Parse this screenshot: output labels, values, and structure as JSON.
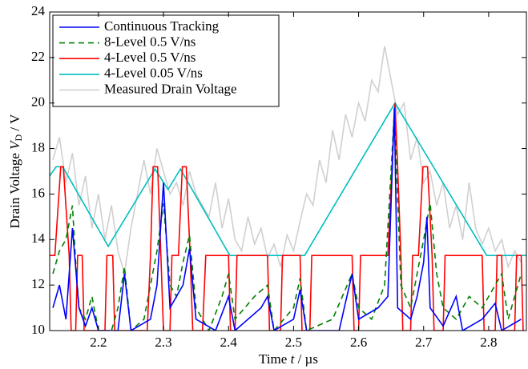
{
  "chart_data": {
    "type": "line",
    "xlabel": {
      "text": "Time",
      "var": "t",
      "unit": "/ µs"
    },
    "ylabel": {
      "text": "Drain Voltage",
      "var": "V",
      "sub": "D",
      "unit": "/ V"
    },
    "xlim": [
      2.125,
      2.858
    ],
    "ylim": [
      10,
      24
    ],
    "xticks": [
      2.2,
      2.3,
      2.4,
      2.5,
      2.6,
      2.7,
      2.8
    ],
    "yticks": [
      10,
      12,
      14,
      16,
      18,
      20,
      22,
      24
    ],
    "legend": "upper left",
    "series": [
      {
        "name": "Continuous Tracking",
        "color": "#0000ff",
        "dash": "solid",
        "x": [
          2.13,
          2.14,
          2.15,
          2.16,
          2.17,
          2.18,
          2.19,
          2.2,
          2.23,
          2.24,
          2.25,
          2.28,
          2.29,
          2.3,
          2.31,
          2.33,
          2.34,
          2.35,
          2.38,
          2.4,
          2.41,
          2.45,
          2.46,
          2.47,
          2.5,
          2.51,
          2.52,
          2.57,
          2.59,
          2.6,
          2.63,
          2.645,
          2.655,
          2.66,
          2.68,
          2.69,
          2.7,
          2.705,
          2.71,
          2.73,
          2.75,
          2.76,
          2.79,
          2.81,
          2.82,
          2.85
        ],
        "values": [
          11,
          12,
          10.5,
          14.5,
          11,
          10.2,
          11,
          10,
          10,
          12.5,
          10,
          10.5,
          12,
          16.5,
          11,
          12,
          13.6,
          10.5,
          10,
          11.5,
          10,
          11,
          11.5,
          10,
          10.5,
          11.8,
          10,
          10,
          12.5,
          10.5,
          11,
          11.5,
          19.8,
          11,
          10.5,
          11.5,
          13,
          15,
          11,
          10.2,
          11.5,
          10,
          10.5,
          11.2,
          10,
          10.5
        ]
      },
      {
        "name": "8-Level 0.5 V/ns",
        "color": "#008000",
        "dash": "dashed",
        "x": [
          2.13,
          2.14,
          2.15,
          2.16,
          2.165,
          2.17,
          2.18,
          2.19,
          2.2,
          2.22,
          2.23,
          2.24,
          2.25,
          2.27,
          2.28,
          2.29,
          2.3,
          2.31,
          2.32,
          2.33,
          2.34,
          2.35,
          2.37,
          2.39,
          2.4,
          2.41,
          2.44,
          2.46,
          2.47,
          2.5,
          2.51,
          2.52,
          2.56,
          2.59,
          2.6,
          2.62,
          2.64,
          2.655,
          2.665,
          2.68,
          2.69,
          2.7,
          2.71,
          2.72,
          2.73,
          2.75,
          2.77,
          2.79,
          2.81,
          2.82,
          2.83,
          2.84,
          2.85
        ],
        "values": [
          12.5,
          13.5,
          14,
          15.5,
          13,
          11,
          10.5,
          11.5,
          10,
          10,
          11,
          12.8,
          10,
          10.5,
          12,
          13.5,
          15.6,
          12,
          11.5,
          13,
          14.2,
          11,
          10,
          11.5,
          12.5,
          10.5,
          11.5,
          12,
          10,
          11,
          12.3,
          10,
          10.5,
          12.5,
          11,
          10.5,
          12,
          19.6,
          12,
          11,
          12.5,
          14,
          15.6,
          12.5,
          11,
          10.5,
          11.5,
          11,
          12,
          12.5,
          10.5,
          11.5,
          12.5
        ]
      },
      {
        "name": "4-Level 0.5 V/ns",
        "color": "#ff0000",
        "dash": "solid",
        "x": [
          2.125,
          2.133,
          2.142,
          2.146,
          2.155,
          2.158,
          2.165,
          2.168,
          2.175,
          2.178,
          2.21,
          2.213,
          2.222,
          2.225,
          2.275,
          2.28,
          2.284,
          2.291,
          2.296,
          2.3,
          2.31,
          2.313,
          2.323,
          2.329,
          2.335,
          2.341,
          2.345,
          2.36,
          2.365,
          2.4,
          2.403,
          2.41,
          2.413,
          2.46,
          2.463,
          2.48,
          2.483,
          2.51,
          2.513,
          2.525,
          2.528,
          2.59,
          2.593,
          2.6,
          2.603,
          2.645,
          2.656,
          2.66,
          2.665,
          2.668,
          2.68,
          2.683,
          2.692,
          2.699,
          2.706,
          2.713,
          2.716,
          2.73,
          2.733,
          2.79,
          2.793,
          2.81,
          2.813,
          2.82,
          2.823,
          2.84,
          2.843,
          2.85,
          2.853
        ],
        "values": [
          13.3,
          13.3,
          17.2,
          17.2,
          13.3,
          10,
          10,
          13.3,
          13.3,
          10,
          10,
          13.3,
          13.3,
          10,
          10,
          13.3,
          17.2,
          17.2,
          13.3,
          10,
          10,
          13.3,
          13.3,
          17.2,
          17.2,
          13.3,
          10,
          10,
          13.3,
          13.3,
          10,
          10,
          13.3,
          13.3,
          10,
          10,
          13.3,
          13.3,
          10,
          10,
          13.3,
          13.3,
          10,
          10,
          13.3,
          13.3,
          20,
          17.2,
          13.3,
          10,
          10,
          13.3,
          13.3,
          17.2,
          17.2,
          13.3,
          10,
          10,
          13.3,
          13.3,
          10,
          10,
          13.3,
          13.3,
          10,
          10,
          13.3,
          13.3,
          10
        ]
      },
      {
        "name": "4-Level 0.05 V/ns",
        "color": "#00bfbf",
        "dash": "solid",
        "x": [
          2.125,
          2.135,
          2.145,
          2.215,
          2.287,
          2.307,
          2.326,
          2.402,
          2.517,
          2.656,
          2.797,
          2.858
        ],
        "values": [
          16.8,
          17.2,
          17.2,
          13.7,
          17.1,
          16.2,
          17.1,
          13.3,
          13.3,
          20,
          13.3,
          13.3
        ]
      },
      {
        "name": "Measured Drain Voltage",
        "color": "#d0d0d0",
        "dash": "solid",
        "x": [
          2.13,
          2.14,
          2.15,
          2.16,
          2.17,
          2.18,
          2.19,
          2.2,
          2.21,
          2.22,
          2.23,
          2.24,
          2.25,
          2.26,
          2.27,
          2.28,
          2.29,
          2.3,
          2.31,
          2.32,
          2.33,
          2.34,
          2.35,
          2.36,
          2.37,
          2.38,
          2.39,
          2.4,
          2.41,
          2.42,
          2.43,
          2.44,
          2.45,
          2.46,
          2.47,
          2.48,
          2.49,
          2.5,
          2.51,
          2.52,
          2.53,
          2.54,
          2.55,
          2.56,
          2.57,
          2.58,
          2.59,
          2.6,
          2.61,
          2.62,
          2.63,
          2.64,
          2.65,
          2.66,
          2.67,
          2.68,
          2.69,
          2.7,
          2.71,
          2.72,
          2.73,
          2.74,
          2.75,
          2.76,
          2.77,
          2.78,
          2.79,
          2.8,
          2.81,
          2.82,
          2.83,
          2.84,
          2.85
        ],
        "values": [
          17.5,
          18.5,
          16.5,
          17.8,
          15.5,
          16.8,
          14.5,
          16,
          14,
          15.5,
          13.5,
          12.5,
          14.5,
          16,
          17.5,
          16,
          18,
          17,
          16,
          16.5,
          15.5,
          17,
          16,
          15.5,
          15,
          16.5,
          14.5,
          15.8,
          14,
          13.5,
          15,
          13.8,
          14.5,
          13.2,
          13.8,
          12.8,
          14.2,
          13.5,
          14.8,
          16,
          15.5,
          17.5,
          16.5,
          18.8,
          17.5,
          19.5,
          18.5,
          20,
          19.2,
          21,
          20.5,
          22.5,
          21,
          19.5,
          20,
          17.5,
          18.5,
          16.5,
          17,
          15.5,
          16.5,
          14.5,
          15.5,
          14,
          16.5,
          14.5,
          13.8,
          14.5,
          13.5,
          14,
          12.8,
          13.5,
          13
        ]
      }
    ]
  }
}
